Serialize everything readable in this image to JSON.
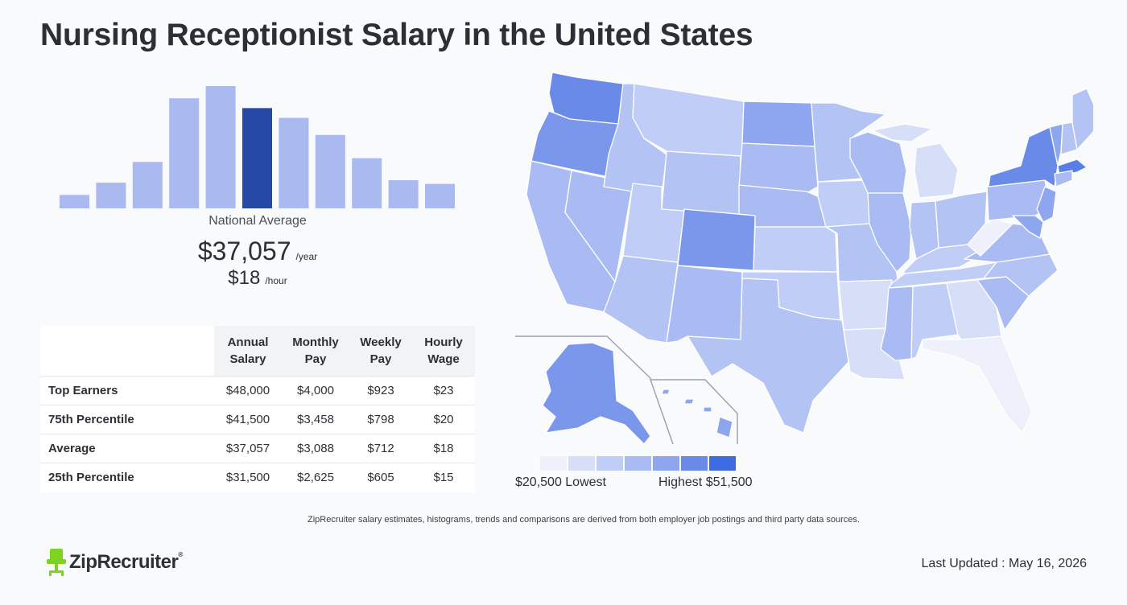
{
  "page": {
    "title": "Nursing Receptionist Salary in the United States"
  },
  "histogram": {
    "bar_values": [
      0.11,
      0.21,
      0.38,
      0.9,
      1.0,
      0.82,
      0.74,
      0.6,
      0.41,
      0.23,
      0.2
    ],
    "highlight_index": 5,
    "bar_color": "#aab9f0",
    "highlight_color": "#2649a5"
  },
  "national": {
    "label": "National Average",
    "annual": "$37,057",
    "annual_unit": "/year",
    "hourly": "$18",
    "hourly_unit": "/hour"
  },
  "table": {
    "headers": [
      "",
      "Annual\nSalary",
      "Monthly\nPay",
      "Weekly\nPay",
      "Hourly\nWage"
    ],
    "header_lines": [
      [
        "Annual",
        "Salary"
      ],
      [
        "Monthly",
        "Pay"
      ],
      [
        "Weekly",
        "Pay"
      ],
      [
        "Hourly",
        "Wage"
      ]
    ],
    "rows": [
      {
        "label": "Top Earners",
        "annual": "$48,000",
        "monthly": "$4,000",
        "weekly": "$923",
        "hourly": "$23"
      },
      {
        "label": "75th Percentile",
        "annual": "$41,500",
        "monthly": "$3,458",
        "weekly": "$798",
        "hourly": "$20"
      },
      {
        "label": "Average",
        "annual": "$37,057",
        "monthly": "$3,088",
        "weekly": "$712",
        "hourly": "$18"
      },
      {
        "label": "25th Percentile",
        "annual": "$31,500",
        "monthly": "$2,625",
        "weekly": "$605",
        "hourly": "$15"
      }
    ]
  },
  "map_legend": {
    "colors": [
      "#eef1fb",
      "#d7def8",
      "#c0cdf6",
      "#a9bbf2",
      "#8ea6ef",
      "#6a8ae8",
      "#3e6ae2"
    ],
    "low_label": "$20,500 Lowest",
    "high_label": "Highest $51,500"
  },
  "footnote": "ZipRecruiter salary estimates, histograms, trends and comparisons are derived from both employer job postings and third party data sources.",
  "footer": {
    "brand": "ZipRecruiter",
    "registered": "®",
    "last_updated": "Last Updated : May 16, 2026"
  }
}
